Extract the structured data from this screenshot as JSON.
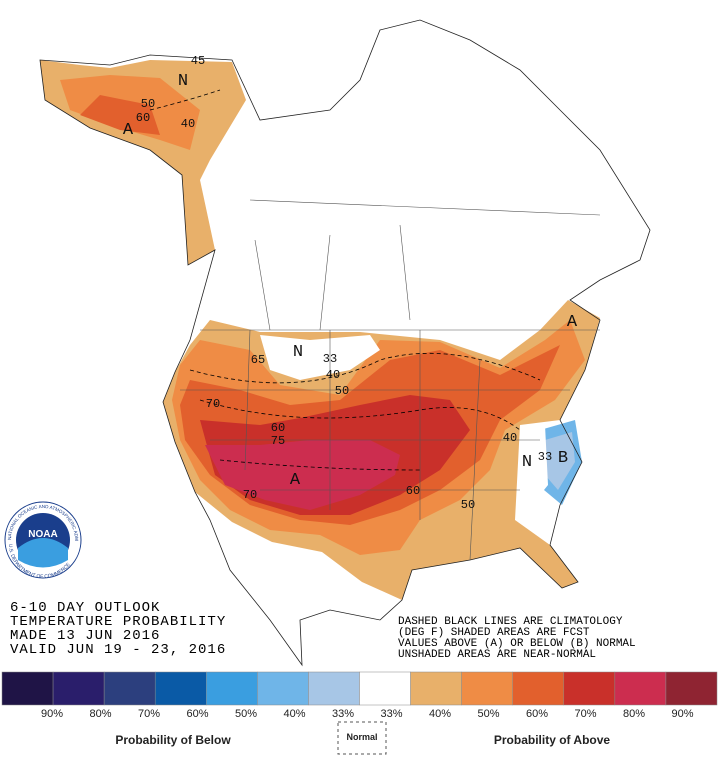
{
  "outlook": {
    "lines": [
      "6-10 DAY OUTLOOK",
      "TEMPERATURE PROBABILITY",
      "MADE  13 JUN 2016",
      "VALID  JUN 19 - 23, 2016"
    ]
  },
  "notes": [
    "DASHED BLACK LINES ARE CLIMATOLOGY",
    "(DEG F) SHADED AREAS ARE FCST",
    "VALUES ABOVE (A) OR BELOW (B) NORMAL",
    "UNSHADED AREAS ARE NEAR-NORMAL"
  ],
  "logo": {
    "name": "NOAA",
    "ring_top": "NATIONAL OCEANIC AND ATMOSPHERIC ADMINISTRATION",
    "ring_bottom": "U.S. DEPARTMENT OF COMMERCE"
  },
  "map_labels": [
    "N",
    "45",
    "50",
    "60",
    "A",
    "40",
    "N",
    "33",
    "40",
    "50",
    "65",
    "70",
    "60",
    "75",
    "A",
    "70",
    "60",
    "50",
    "40",
    "A",
    "N",
    "33",
    "B"
  ],
  "legend": {
    "labels": [
      "90%",
      "80%",
      "70%",
      "60%",
      "50%",
      "40%",
      "33%",
      "33%",
      "40%",
      "50%",
      "60%",
      "70%",
      "80%",
      "90%"
    ],
    "below": "Probability of Below",
    "normal": "Normal",
    "above": "Probability of Above"
  }
}
